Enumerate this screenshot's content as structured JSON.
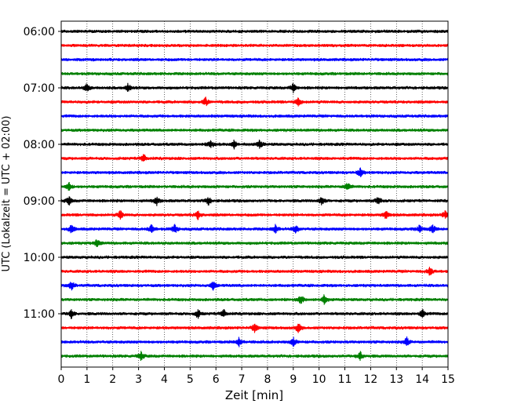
{
  "chart_data": {
    "type": "line",
    "subtype": "helicorder",
    "xlabel": "Zeit  [min]",
    "ylabel": "UTC (Lokalzeit = UTC + 02:00)",
    "xlim": [
      0,
      15
    ],
    "x_ticks": [
      "0",
      "1",
      "2",
      "3",
      "4",
      "5",
      "6",
      "7",
      "8",
      "9",
      "10",
      "11",
      "12",
      "13",
      "14",
      "15"
    ],
    "y_tick_labels": [
      "06:00",
      "07:00",
      "08:00",
      "09:00",
      "10:00",
      "11:00"
    ],
    "grid": "vertical dotted lines at each minute",
    "trace_start_time": "06:00",
    "trace_interval_minutes": 15,
    "trace_count": 24,
    "trace_color_cycle": [
      "#000000",
      "#ff0000",
      "#0000ff",
      "#008000"
    ],
    "events": [
      {
        "trace": 4,
        "minutes": [
          1.0,
          2.6,
          9.0
        ]
      },
      {
        "trace": 5,
        "minutes": [
          5.6,
          9.2
        ]
      },
      {
        "trace": 8,
        "minutes": [
          5.8,
          6.7,
          7.7
        ]
      },
      {
        "trace": 9,
        "minutes": [
          3.2
        ]
      },
      {
        "trace": 10,
        "minutes": [
          11.6
        ]
      },
      {
        "trace": 11,
        "minutes": [
          0.3,
          11.1
        ]
      },
      {
        "trace": 12,
        "minutes": [
          0.3,
          3.7,
          5.7,
          10.1,
          12.3
        ]
      },
      {
        "trace": 13,
        "minutes": [
          2.3,
          5.3,
          12.6,
          14.9
        ]
      },
      {
        "trace": 14,
        "minutes": [
          0.4,
          3.5,
          4.4,
          8.3,
          9.1,
          13.9,
          14.4
        ]
      },
      {
        "trace": 15,
        "minutes": [
          1.4
        ]
      },
      {
        "trace": 17,
        "minutes": [
          14.3
        ]
      },
      {
        "trace": 18,
        "minutes": [
          0.4,
          5.9
        ]
      },
      {
        "trace": 19,
        "minutes": [
          9.3,
          10.2
        ]
      },
      {
        "trace": 20,
        "minutes": [
          0.4,
          5.3,
          6.3,
          14.0
        ]
      },
      {
        "trace": 21,
        "minutes": [
          7.5,
          9.2
        ]
      },
      {
        "trace": 22,
        "minutes": [
          6.9,
          9.0,
          13.4
        ]
      },
      {
        "trace": 23,
        "minutes": [
          3.1,
          11.6
        ]
      }
    ]
  }
}
